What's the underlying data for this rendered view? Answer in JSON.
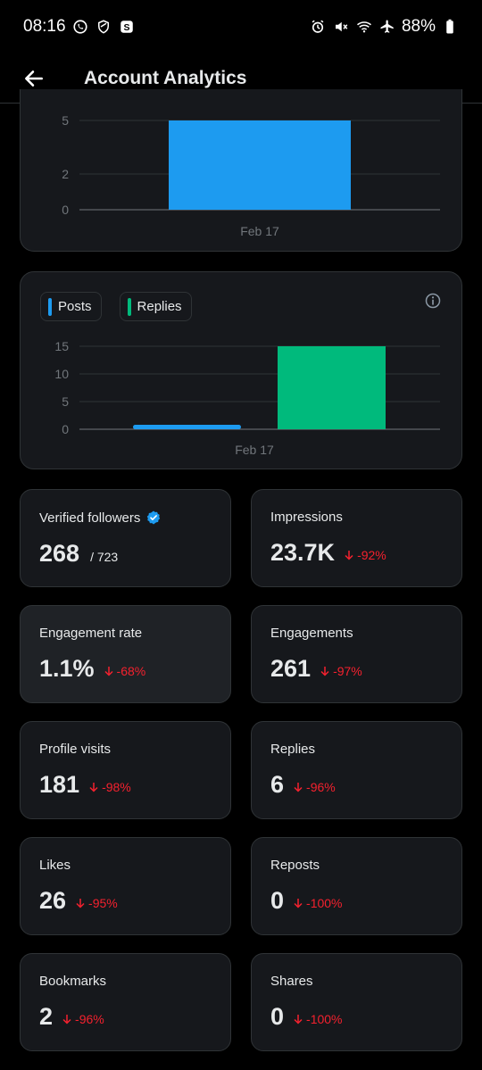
{
  "status_bar": {
    "time": "08:16",
    "battery": "88%"
  },
  "header": {
    "title": "Account Analytics"
  },
  "chart1": {
    "chart_data": {
      "type": "bar",
      "categories": [
        "Feb 17"
      ],
      "values": [
        5
      ],
      "yticks": [
        0,
        2,
        5
      ],
      "ylim": [
        0,
        5
      ],
      "color": "#1d9bf0"
    }
  },
  "chart2": {
    "legend": [
      {
        "label": "Posts",
        "color": "#1d9bf0"
      },
      {
        "label": "Replies",
        "color": "#00ba7c"
      }
    ],
    "chart_data": {
      "type": "bar",
      "categories": [
        "Feb 17"
      ],
      "series": [
        {
          "name": "Posts",
          "values": [
            0.5
          ],
          "color": "#1d9bf0"
        },
        {
          "name": "Replies",
          "values": [
            15
          ],
          "color": "#00ba7c"
        }
      ],
      "yticks": [
        0,
        5,
        10,
        15
      ],
      "ylim": [
        0,
        15
      ]
    }
  },
  "stats": [
    {
      "label": "Verified followers",
      "value": "268",
      "suffix": "/ 723",
      "change": ""
    },
    {
      "label": "Impressions",
      "value": "23.7K",
      "change": "-92%"
    },
    {
      "label": "Engagement rate",
      "value": "1.1%",
      "change": "-68%"
    },
    {
      "label": "Engagements",
      "value": "261",
      "change": "-97%"
    },
    {
      "label": "Profile visits",
      "value": "181",
      "change": "-98%"
    },
    {
      "label": "Replies",
      "value": "6",
      "change": "-96%"
    },
    {
      "label": "Likes",
      "value": "26",
      "change": "-95%"
    },
    {
      "label": "Reposts",
      "value": "0",
      "change": "-100%"
    },
    {
      "label": "Bookmarks",
      "value": "2",
      "change": "-96%"
    },
    {
      "label": "Shares",
      "value": "0",
      "change": "-100%"
    }
  ]
}
